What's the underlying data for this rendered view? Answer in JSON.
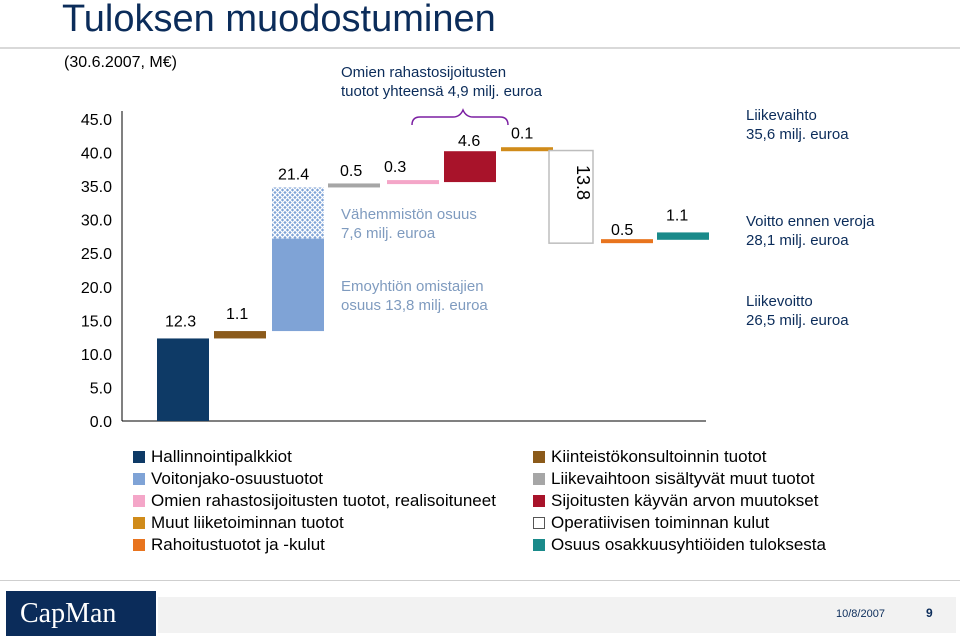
{
  "slide": {
    "title": "Tuloksen muodostuminen",
    "subtitle": "(30.6.2007, M€)",
    "footer_date": "10/8/2007",
    "page_number": "9",
    "logo_text": "CapMan"
  },
  "colors": {
    "title": "#0b2c5a",
    "navy": "#0e3a66",
    "light_blue": "#7fa3d6",
    "pink": "#f4a6c8",
    "amber": "#d08b1a",
    "orange": "#e8741e",
    "brown": "#8b5a1a",
    "gray": "#a6a6a6",
    "crimson": "#a8132a",
    "white": "#ffffff",
    "teal": "#1a8a8a"
  },
  "chart_data": {
    "type": "bar",
    "subtype": "waterfall",
    "ylim": [
      0,
      45
    ],
    "y_ticks": [
      "0.0",
      "5.0",
      "10.0",
      "15.0",
      "20.0",
      "25.0",
      "30.0",
      "35.0",
      "40.0",
      "45.0"
    ],
    "y_tick_values": [
      0,
      5,
      10,
      15,
      20,
      25,
      30,
      35,
      40,
      45
    ],
    "grid": false,
    "bars": [
      {
        "label": "12.3",
        "base": 0,
        "value": 12.3,
        "color": "navy",
        "fill": "solid",
        "series": "Hallinnointipalkkiot"
      },
      {
        "label": "1.1",
        "base": 12.3,
        "value": 1.1,
        "color": "brown",
        "fill": "solid",
        "series": "Kiinteistökonsultoinnin tuotot"
      },
      {
        "label": "21.4",
        "base": 13.4,
        "value": 21.4,
        "color": "light_blue",
        "fill": "solid",
        "hatched_part": 7.6,
        "series": "Voitonjako-osuustuotot"
      },
      {
        "label": "0.5",
        "base": 34.8,
        "value": 0.5,
        "color": "gray",
        "fill": "solid",
        "series": "Liikevaihtoon sisältyvät muut tuotot"
      },
      {
        "label": "0.3",
        "base": 35.3,
        "value": 0.3,
        "color": "pink",
        "fill": "solid",
        "series": "Omien rahastosijoitusten tuotot, realisoituneet"
      },
      {
        "label": "4.6",
        "base": 35.6,
        "value": 4.6,
        "color": "crimson",
        "fill": "solid",
        "series": "Sijoitusten käyvän arvon muutokset"
      },
      {
        "label": "0.1",
        "base": 40.2,
        "value": 0.1,
        "color": "amber",
        "fill": "solid",
        "series": "Muut liiketoiminnan tuotot"
      },
      {
        "label": "13.8",
        "base": 26.5,
        "value": 13.8,
        "color": "white",
        "fill": "outline",
        "label_rotated": true,
        "series": "Operatiivisen toiminnan kulut"
      },
      {
        "label": "0.5",
        "base": 26.5,
        "value": 0.5,
        "color": "orange",
        "fill": "solid",
        "series": "Rahoitustuotot ja -kulut"
      },
      {
        "label": "1.1",
        "base": 27.0,
        "value": 1.1,
        "color": "teal",
        "fill": "solid",
        "series": "Osuus osakkuusyhtiöiden tuloksesta"
      }
    ],
    "annotations": {
      "brace_label_line1": "Omien rahastosijoitusten",
      "brace_label_line2": "tuotot yhteensä 4,9 milj. euroa",
      "minority_line1": "Vähemmistön osuus",
      "minority_line2": "7,6 milj. euroa",
      "parent_line1": "Emoyhtiön omistajien",
      "parent_line2": "osuus 13,8 milj. euroa",
      "revenue_line1": "Liikevaihto",
      "revenue_line2": "35,6 milj. euroa",
      "pretax_line1": "Voitto ennen veroja",
      "pretax_line2": "28,1 milj. euroa",
      "operating_line1": "Liikevoitto",
      "operating_line2": "26,5 milj. euroa"
    }
  },
  "legend": {
    "left": [
      {
        "label": "Hallinnointipalkkiot",
        "color": "navy"
      },
      {
        "label": "Voitonjako-osuustuotot",
        "color": "light_blue"
      },
      {
        "label": "Omien rahastosijoitusten tuotot, realisoituneet",
        "color": "pink"
      },
      {
        "label": "Muut liiketoiminnan tuotot",
        "color": "amber"
      },
      {
        "label": "Rahoitustuotot ja -kulut",
        "color": "orange"
      }
    ],
    "right": [
      {
        "label": "Kiinteistökonsultoinnin tuotot",
        "color": "brown"
      },
      {
        "label": "Liikevaihtoon sisältyvät muut tuotot",
        "color": "gray"
      },
      {
        "label": "Sijoitusten käyvän arvon muutokset",
        "color": "crimson"
      },
      {
        "label": "Operatiivisen toiminnan kulut",
        "color": "white"
      },
      {
        "label": "Osuus osakkuusyhtiöiden tuloksesta",
        "color": "teal"
      }
    ]
  }
}
